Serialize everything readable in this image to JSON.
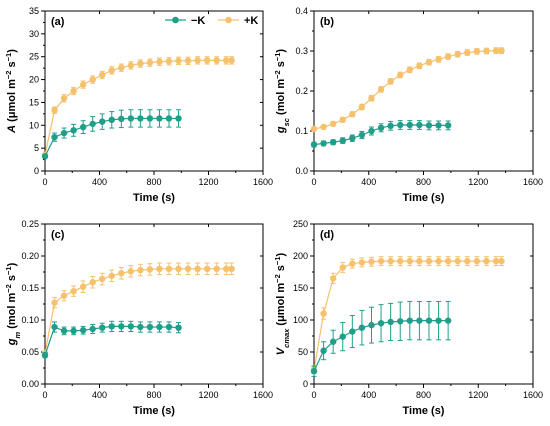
{
  "colors": {
    "minusK": "#1f9e89",
    "plusK": "#f5c16c",
    "axis": "#000000"
  },
  "legend": {
    "placement": "top-center of panel (a)",
    "entries": [
      {
        "label": "−K",
        "color": "#1f9e89",
        "marker": "circle"
      },
      {
        "label": "+K",
        "color": "#f5c16c",
        "marker": "circle"
      }
    ]
  },
  "xlabel": "Time (s)",
  "chart_data": [
    {
      "panel": "(a)",
      "type": "line",
      "xlim": [
        0,
        1600
      ],
      "ylim": [
        0,
        35
      ],
      "xticks": [
        0,
        400,
        800,
        1200,
        1600
      ],
      "xtick_labels": [
        "0",
        "400",
        "800",
        "1200",
        "1600"
      ],
      "yticks": [
        0,
        5,
        10,
        15,
        20,
        25,
        30,
        35
      ],
      "ytick_labels": [
        "0",
        "5",
        "10",
        "15",
        "20",
        "25",
        "30",
        "35"
      ],
      "ylabel_parts": [
        {
          "t": "A",
          "i": true
        },
        {
          "t": " (μmol m"
        },
        {
          "t": "−2",
          "sup": true
        },
        {
          "t": " s"
        },
        {
          "t": "−1",
          "sup": true
        },
        {
          "t": ")"
        }
      ],
      "series": [
        {
          "name": "−K",
          "color": "#1f9e89",
          "x": [
            0,
            70,
            140,
            210,
            280,
            350,
            420,
            490,
            560,
            630,
            700,
            770,
            840,
            910,
            980
          ],
          "y": [
            3.2,
            7.4,
            8.3,
            8.9,
            9.6,
            10.3,
            10.8,
            11.2,
            11.4,
            11.5,
            11.5,
            11.5,
            11.5,
            11.5,
            11.5
          ],
          "err": [
            0.3,
            0.9,
            1.1,
            1.3,
            1.4,
            1.6,
            1.7,
            1.8,
            1.9,
            1.9,
            1.9,
            1.9,
            1.9,
            1.9,
            1.9
          ]
        },
        {
          "name": "+K",
          "color": "#f5c16c",
          "x": [
            0,
            70,
            140,
            210,
            280,
            350,
            420,
            490,
            560,
            630,
            700,
            770,
            840,
            910,
            980,
            1050,
            1120,
            1190,
            1260,
            1330,
            1370
          ],
          "y": [
            3.5,
            13.3,
            15.9,
            17.5,
            18.9,
            20.0,
            21.0,
            22.0,
            22.6,
            23.1,
            23.5,
            23.7,
            23.9,
            24.0,
            24.1,
            24.1,
            24.2,
            24.2,
            24.2,
            24.2,
            24.2
          ],
          "err": [
            0.3,
            0.7,
            0.8,
            0.8,
            0.8,
            0.8,
            0.8,
            0.8,
            0.8,
            0.8,
            0.8,
            0.8,
            0.8,
            0.8,
            0.8,
            0.8,
            0.8,
            0.8,
            0.8,
            0.8,
            0.8
          ]
        }
      ]
    },
    {
      "panel": "(b)",
      "type": "line",
      "xlim": [
        0,
        1600
      ],
      "ylim": [
        0,
        0.4
      ],
      "xticks": [
        0,
        400,
        800,
        1200,
        1600
      ],
      "xtick_labels": [
        "0",
        "400",
        "800",
        "1200",
        "1600"
      ],
      "yticks": [
        0,
        0.1,
        0.2,
        0.3,
        0.4
      ],
      "ytick_labels": [
        "0.0",
        "0.1",
        "0.2",
        "0.3",
        "0.4"
      ],
      "ylabel_parts": [
        {
          "t": "g",
          "i": true
        },
        {
          "t": "sc",
          "sub": true,
          "i": true
        },
        {
          "t": " (mol m"
        },
        {
          "t": "−2",
          "sup": true
        },
        {
          "t": " s"
        },
        {
          "t": "−1",
          "sup": true
        },
        {
          "t": ")"
        }
      ],
      "series": [
        {
          "name": "−K",
          "color": "#1f9e89",
          "x": [
            0,
            70,
            140,
            210,
            280,
            350,
            420,
            490,
            560,
            630,
            700,
            770,
            840,
            910,
            980
          ],
          "y": [
            0.066,
            0.069,
            0.072,
            0.076,
            0.082,
            0.09,
            0.1,
            0.108,
            0.113,
            0.115,
            0.115,
            0.115,
            0.114,
            0.114,
            0.114
          ],
          "err": [
            0.006,
            0.006,
            0.006,
            0.007,
            0.008,
            0.009,
            0.01,
            0.01,
            0.011,
            0.011,
            0.011,
            0.011,
            0.011,
            0.011,
            0.011
          ]
        },
        {
          "name": "+K",
          "color": "#f5c16c",
          "x": [
            0,
            70,
            140,
            210,
            280,
            350,
            420,
            490,
            560,
            630,
            700,
            770,
            840,
            910,
            980,
            1050,
            1120,
            1190,
            1260,
            1330,
            1370
          ],
          "y": [
            0.105,
            0.11,
            0.118,
            0.128,
            0.142,
            0.16,
            0.182,
            0.204,
            0.224,
            0.24,
            0.253,
            0.263,
            0.272,
            0.279,
            0.286,
            0.292,
            0.296,
            0.299,
            0.3,
            0.301,
            0.301
          ],
          "err": [
            0.004,
            0.005,
            0.005,
            0.006,
            0.006,
            0.007,
            0.007,
            0.007,
            0.007,
            0.007,
            0.007,
            0.007,
            0.007,
            0.007,
            0.007,
            0.007,
            0.007,
            0.007,
            0.007,
            0.007,
            0.007
          ]
        }
      ]
    },
    {
      "panel": "(c)",
      "type": "line",
      "xlim": [
        0,
        1600
      ],
      "ylim": [
        0,
        0.25
      ],
      "xticks": [
        0,
        400,
        800,
        1200,
        1600
      ],
      "xtick_labels": [
        "0",
        "400",
        "800",
        "1200",
        "1600"
      ],
      "yticks": [
        0,
        0.05,
        0.1,
        0.15,
        0.2,
        0.25
      ],
      "ytick_labels": [
        "0.00",
        "0.05",
        "0.10",
        "0.15",
        "0.20",
        "0.25"
      ],
      "ylabel_parts": [
        {
          "t": "g",
          "i": true
        },
        {
          "t": "m",
          "sub": true,
          "i": true
        },
        {
          "t": " (mol m"
        },
        {
          "t": "−2",
          "sup": true
        },
        {
          "t": " s"
        },
        {
          "t": "−1",
          "sup": true
        },
        {
          "t": ")"
        }
      ],
      "series": [
        {
          "name": "−K",
          "color": "#1f9e89",
          "x": [
            0,
            70,
            140,
            210,
            280,
            350,
            420,
            490,
            560,
            630,
            700,
            770,
            840,
            910,
            980
          ],
          "y": [
            0.045,
            0.089,
            0.083,
            0.083,
            0.084,
            0.086,
            0.088,
            0.09,
            0.09,
            0.09,
            0.089,
            0.089,
            0.089,
            0.089,
            0.088
          ],
          "err": [
            0.004,
            0.008,
            0.006,
            0.006,
            0.006,
            0.007,
            0.007,
            0.008,
            0.008,
            0.008,
            0.008,
            0.008,
            0.008,
            0.008,
            0.008
          ]
        },
        {
          "name": "+K",
          "color": "#f5c16c",
          "x": [
            0,
            70,
            140,
            210,
            280,
            350,
            420,
            490,
            560,
            630,
            700,
            770,
            840,
            910,
            980,
            1050,
            1120,
            1190,
            1260,
            1330,
            1370
          ],
          "y": [
            0.048,
            0.127,
            0.138,
            0.145,
            0.152,
            0.159,
            0.164,
            0.169,
            0.173,
            0.176,
            0.178,
            0.179,
            0.18,
            0.18,
            0.18,
            0.18,
            0.18,
            0.18,
            0.18,
            0.18,
            0.18
          ],
          "err": [
            0.004,
            0.008,
            0.008,
            0.008,
            0.009,
            0.009,
            0.009,
            0.009,
            0.009,
            0.009,
            0.009,
            0.009,
            0.009,
            0.009,
            0.009,
            0.009,
            0.009,
            0.009,
            0.009,
            0.009,
            0.009
          ]
        }
      ]
    },
    {
      "panel": "(d)",
      "type": "line",
      "xlim": [
        0,
        1600
      ],
      "ylim": [
        0,
        250
      ],
      "xticks": [
        0,
        400,
        800,
        1200,
        1600
      ],
      "xtick_labels": [
        "0",
        "400",
        "800",
        "1200",
        "1600"
      ],
      "yticks": [
        0,
        50,
        100,
        150,
        200,
        250
      ],
      "ytick_labels": [
        "0",
        "50",
        "100",
        "150",
        "200",
        "250"
      ],
      "ylabel_parts": [
        {
          "t": "V",
          "i": true
        },
        {
          "t": "cmax",
          "sub": true,
          "i": true
        },
        {
          "t": " (μmol m"
        },
        {
          "t": "−2",
          "sup": true
        },
        {
          "t": " s"
        },
        {
          "t": "−1",
          "sup": true
        },
        {
          "t": ")"
        }
      ],
      "series": [
        {
          "name": "−K",
          "color": "#1f9e89",
          "x": [
            0,
            70,
            140,
            210,
            280,
            350,
            420,
            490,
            560,
            630,
            700,
            770,
            840,
            910,
            980
          ],
          "y": [
            20,
            52,
            66,
            74,
            82,
            88,
            92,
            95,
            97,
            98,
            99,
            99,
            99,
            99,
            99
          ],
          "err": [
            8,
            14,
            18,
            22,
            25,
            27,
            28,
            29,
            29,
            30,
            30,
            30,
            30,
            30,
            30
          ]
        },
        {
          "name": "+K",
          "color": "#f5c16c",
          "x": [
            0,
            70,
            140,
            210,
            280,
            350,
            420,
            490,
            560,
            630,
            700,
            770,
            840,
            910,
            980,
            1050,
            1120,
            1190,
            1260,
            1330,
            1370
          ],
          "y": [
            22,
            110,
            165,
            182,
            188,
            190,
            191,
            192,
            192,
            192,
            192,
            192,
            192,
            192,
            192,
            192,
            192,
            192,
            192,
            192,
            192
          ],
          "err": [
            5,
            9,
            8,
            8,
            7,
            7,
            7,
            7,
            7,
            7,
            7,
            7,
            7,
            7,
            7,
            7,
            7,
            7,
            7,
            7,
            7
          ]
        }
      ]
    }
  ]
}
